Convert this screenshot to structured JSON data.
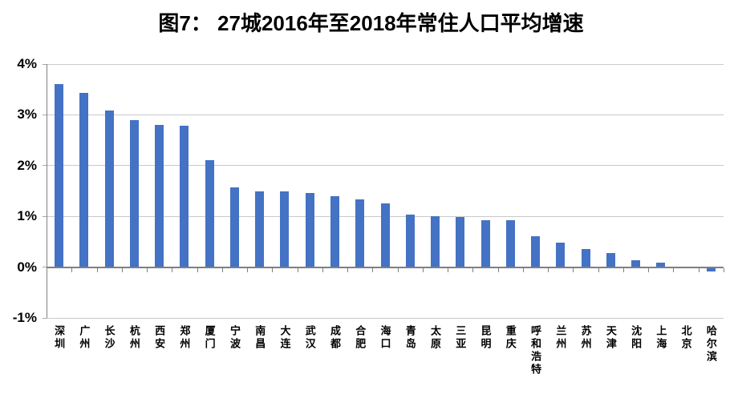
{
  "page_title": "图7： 27城2016年至2018年常住人口平均增速",
  "chart_data": {
    "type": "bar",
    "title": "图7： 27城2016年至2018年常住人口平均增速",
    "categories": [
      "深圳",
      "广州",
      "长沙",
      "杭州",
      "西安",
      "郑州",
      "厦门",
      "宁波",
      "南昌",
      "大连",
      "武汉",
      "成都",
      "合肥",
      "海口",
      "青岛",
      "太原",
      "三亚",
      "昆明",
      "重庆",
      "呼和浩特",
      "兰州",
      "苏州",
      "天津",
      "沈阳",
      "上海",
      "北京",
      "哈尔滨"
    ],
    "values": [
      3.6,
      3.43,
      3.08,
      2.9,
      2.8,
      2.78,
      2.1,
      1.57,
      1.5,
      1.5,
      1.46,
      1.4,
      1.33,
      1.25,
      1.04,
      1.01,
      0.99,
      0.92,
      0.92,
      0.61,
      0.48,
      0.35,
      0.27,
      0.14,
      0.09,
      0.0,
      -0.06
    ],
    "xlabel": "",
    "ylabel": "",
    "ylim": [
      -1,
      4
    ],
    "yticks": [
      "4%",
      "3%",
      "2%",
      "1%",
      "0%",
      "-1%"
    ],
    "grid": true,
    "legend": "none",
    "bar_color": "#4472c4",
    "gridline_color": "#c9c9c9",
    "axis_color": "#7f7f7f",
    "text_color": "#000000",
    "background_color": "#ffffff"
  }
}
